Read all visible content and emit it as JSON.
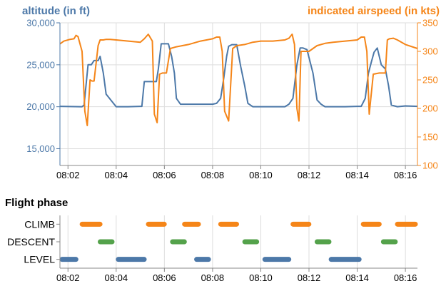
{
  "colors": {
    "altitude": "#4c78a8",
    "airspeed": "#f58518",
    "climb": "#f58518",
    "descent": "#54a24b",
    "level": "#4c78a8",
    "grid": "#dddddd",
    "axis": "#888888",
    "text": "#000000"
  },
  "chart_data": [
    {
      "type": "line",
      "title": "",
      "x_ticks": [
        "08:02",
        "08:04",
        "08:06",
        "08:08",
        "08:10",
        "08:12",
        "08:14",
        "08:16"
      ],
      "xlim": [
        "08:01:40",
        "08:16:30"
      ],
      "grid": true,
      "y_left": {
        "label": "altitude (in ft)",
        "ylim": [
          13000,
          30000
        ],
        "ticks": [
          "15,000",
          "20,000",
          "25,000",
          "30,000"
        ],
        "tick_values": [
          15000,
          20000,
          25000,
          30000
        ]
      },
      "y_right": {
        "label": "indicated airspeed (in kts)",
        "ylim": [
          100,
          350
        ],
        "ticks": [
          "100",
          "150",
          "200",
          "250",
          "300",
          "350"
        ],
        "tick_values": [
          100,
          150,
          200,
          250,
          300,
          350
        ]
      },
      "series": [
        {
          "axis": "left",
          "x": [
            "08:01:40",
            "08:02:30",
            "08:02:35",
            "08:02:40",
            "08:02:50",
            "08:02:58",
            "08:03:05",
            "08:03:15",
            "08:03:20",
            "08:03:28",
            "08:03:35",
            "08:04:00",
            "08:04:30",
            "08:05:00",
            "08:05:04",
            "08:05:10",
            "08:05:30",
            "08:05:40",
            "08:05:45",
            "08:05:52",
            "08:06:10",
            "08:06:18",
            "08:06:25",
            "08:06:30",
            "08:06:40",
            "08:07:00",
            "08:07:30",
            "08:08:00",
            "08:08:10",
            "08:08:20",
            "08:08:28",
            "08:08:35",
            "08:08:40",
            "08:08:48",
            "08:09:00",
            "08:09:10",
            "08:09:20",
            "08:09:28",
            "08:09:40",
            "08:10:00",
            "08:10:30",
            "08:11:00",
            "08:11:10",
            "08:11:20",
            "08:11:30",
            "08:11:38",
            "08:11:45",
            "08:11:55",
            "08:12:10",
            "08:12:20",
            "08:12:30",
            "08:12:40",
            "08:13:00",
            "08:13:30",
            "08:14:00",
            "08:14:10",
            "08:14:20",
            "08:14:28",
            "08:14:35",
            "08:14:42",
            "08:14:50",
            "08:15:00",
            "08:15:10",
            "08:15:18",
            "08:15:25",
            "08:15:40",
            "08:16:00",
            "08:16:30"
          ],
          "values": [
            20050,
            20000,
            20000,
            20200,
            25000,
            25000,
            25500,
            25500,
            26000,
            24000,
            21500,
            20000,
            20000,
            20050,
            20050,
            23000,
            23000,
            23000,
            24500,
            27500,
            27500,
            26000,
            24000,
            21000,
            20300,
            20300,
            20300,
            20300,
            20400,
            21000,
            23500,
            26000,
            27200,
            27400,
            27400,
            24800,
            22500,
            20400,
            20000,
            20000,
            20000,
            20000,
            20300,
            21000,
            25000,
            27000,
            27000,
            26800,
            24000,
            20800,
            20300,
            20000,
            20000,
            20000,
            20050,
            20050,
            21000,
            24000,
            25300,
            26500,
            27000,
            25000,
            24500,
            22500,
            20200,
            20000,
            20100,
            20050
          ]
        },
        {
          "axis": "right",
          "x": [
            "08:01:40",
            "08:01:50",
            "08:02:05",
            "08:02:15",
            "08:02:20",
            "08:02:25",
            "08:02:35",
            "08:02:42",
            "08:02:48",
            "08:02:55",
            "08:03:00",
            "08:03:05",
            "08:03:15",
            "08:03:20",
            "08:03:28",
            "08:03:35",
            "08:03:45",
            "08:04:00",
            "08:04:30",
            "08:05:00",
            "08:05:10",
            "08:05:20",
            "08:05:30",
            "08:05:35",
            "08:05:42",
            "08:05:48",
            "08:05:55",
            "08:06:05",
            "08:06:15",
            "08:06:30",
            "08:07:00",
            "08:07:30",
            "08:08:00",
            "08:08:10",
            "08:08:18",
            "08:08:24",
            "08:08:30",
            "08:08:40",
            "08:08:50",
            "08:09:00",
            "08:09:20",
            "08:09:40",
            "08:10:00",
            "08:10:30",
            "08:11:00",
            "08:11:10",
            "08:11:18",
            "08:11:24",
            "08:11:30",
            "08:11:35",
            "08:11:40",
            "08:11:50",
            "08:12:00",
            "08:12:20",
            "08:12:40",
            "08:13:00",
            "08:13:30",
            "08:14:00",
            "08:14:10",
            "08:14:18",
            "08:14:24",
            "08:14:30",
            "08:14:40",
            "08:14:55",
            "08:15:10",
            "08:15:15",
            "08:15:20",
            "08:15:30",
            "08:15:40",
            "08:16:00",
            "08:16:30"
          ],
          "values": [
            313,
            318,
            321,
            322,
            328,
            326,
            300,
            195,
            170,
            250,
            248,
            248,
            310,
            320,
            320,
            321,
            321,
            320,
            318,
            316,
            322,
            330,
            318,
            190,
            175,
            260,
            262,
            262,
            305,
            308,
            312,
            318,
            322,
            325,
            325,
            300,
            195,
            178,
            305,
            310,
            312,
            316,
            318,
            318,
            320,
            323,
            330,
            312,
            200,
            178,
            300,
            300,
            300,
            310,
            314,
            316,
            318,
            320,
            325,
            325,
            300,
            190,
            260,
            262,
            262,
            320,
            322,
            323,
            320,
            312,
            305
          ]
        }
      ]
    },
    {
      "type": "timeline",
      "title": "Flight phase",
      "categories": [
        "CLIMB",
        "DESCENT",
        "LEVEL"
      ],
      "x_ticks": [
        "08:02",
        "08:04",
        "08:06",
        "08:08",
        "08:10",
        "08:12",
        "08:14",
        "08:16"
      ],
      "xlim": [
        "08:01:40",
        "08:16:30"
      ],
      "grid": true,
      "segments": [
        {
          "phase": "CLIMB",
          "start": "08:02:30",
          "end": "08:03:25"
        },
        {
          "phase": "CLIMB",
          "start": "08:05:15",
          "end": "08:06:05"
        },
        {
          "phase": "CLIMB",
          "start": "08:06:45",
          "end": "08:07:30"
        },
        {
          "phase": "CLIMB",
          "start": "08:08:15",
          "end": "08:09:05"
        },
        {
          "phase": "CLIMB",
          "start": "08:11:15",
          "end": "08:12:05"
        },
        {
          "phase": "CLIMB",
          "start": "08:14:10",
          "end": "08:15:00"
        },
        {
          "phase": "CLIMB",
          "start": "08:15:35",
          "end": "08:16:30"
        },
        {
          "phase": "DESCENT",
          "start": "08:03:15",
          "end": "08:03:55"
        },
        {
          "phase": "DESCENT",
          "start": "08:06:15",
          "end": "08:06:55"
        },
        {
          "phase": "DESCENT",
          "start": "08:09:15",
          "end": "08:09:55"
        },
        {
          "phase": "DESCENT",
          "start": "08:12:15",
          "end": "08:12:55"
        },
        {
          "phase": "DESCENT",
          "start": "08:15:00",
          "end": "08:15:40"
        },
        {
          "phase": "LEVEL",
          "start": "08:01:40",
          "end": "08:02:25"
        },
        {
          "phase": "LEVEL",
          "start": "08:04:00",
          "end": "08:05:15"
        },
        {
          "phase": "LEVEL",
          "start": "08:07:15",
          "end": "08:07:55"
        },
        {
          "phase": "LEVEL",
          "start": "08:10:05",
          "end": "08:11:15"
        },
        {
          "phase": "LEVEL",
          "start": "08:12:50",
          "end": "08:14:10"
        }
      ]
    }
  ]
}
